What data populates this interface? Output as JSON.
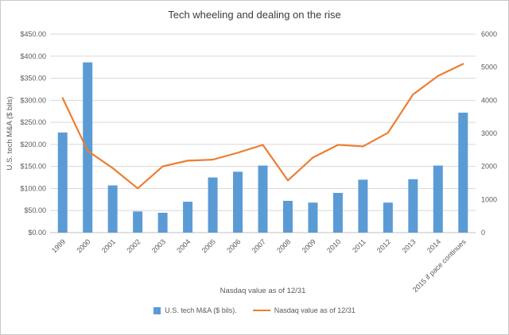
{
  "chart_data": {
    "type": "combo",
    "title": "Tech wheeling and dealing on the rise",
    "xlabel": "Nasdaq value as of 12/31",
    "grid": true,
    "legend_position": "bottom",
    "categories": [
      "1999",
      "2000",
      "2001",
      "2002",
      "2003",
      "2004",
      "2005",
      "2006",
      "2007",
      "2008",
      "2009",
      "2010",
      "2011",
      "2012",
      "2013",
      "2014",
      "2015 if pace continues"
    ],
    "series": [
      {
        "name": "U.S. tech M&A ($ bils).",
        "type": "bar",
        "axis": "left",
        "color": "#5b9bd5",
        "values": [
          227,
          386,
          107,
          48,
          45,
          70,
          125,
          138,
          152,
          72,
          68,
          90,
          120,
          68,
          121,
          152,
          272
        ]
      },
      {
        "name": "Nasdaq value as of 12/31",
        "type": "line",
        "axis": "right",
        "color": "#ed7d31",
        "values": [
          4069,
          2471,
          1950,
          1336,
          2003,
          2175,
          2205,
          2415,
          2652,
          1577,
          2269,
          2653,
          2605,
          3020,
          4177,
          4736,
          5100
        ]
      }
    ],
    "left_axis": {
      "title": "U.S. tech M&A ($ bils)",
      "min": 0,
      "max": 450,
      "step": 50,
      "ticks": [
        "$0.00",
        "$50.00",
        "$100.00",
        "$150.00",
        "$200.00",
        "$250.00",
        "$300.00",
        "$350.00",
        "$400.00",
        "$450.00"
      ]
    },
    "right_axis": {
      "min": 0,
      "max": 6000,
      "step": 1000,
      "ticks": [
        "0",
        "1000",
        "2000",
        "3000",
        "4000",
        "5000",
        "6000"
      ]
    },
    "colors": {
      "gridline": "#d9d9d9",
      "axis_line": "#bfbfbf",
      "text": "#595959"
    }
  }
}
